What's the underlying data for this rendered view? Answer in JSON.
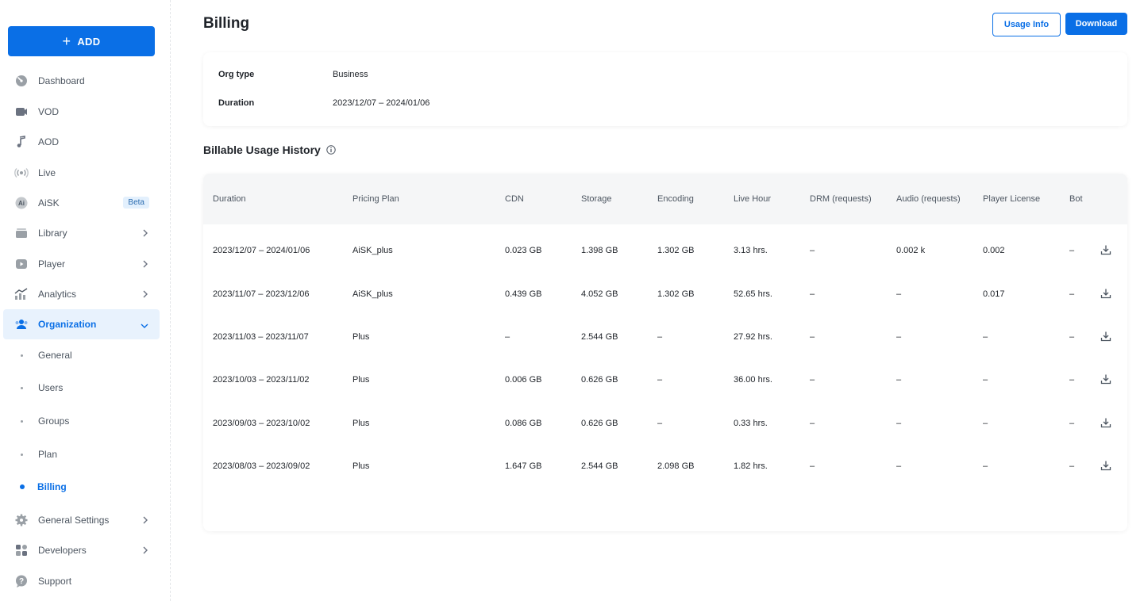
{
  "sidebar": {
    "add_label": "ADD",
    "items": [
      {
        "label": "Dashboard",
        "icon": "dashboard-icon"
      },
      {
        "label": "VOD",
        "icon": "vod-icon"
      },
      {
        "label": "AOD",
        "icon": "music-note-icon"
      },
      {
        "label": "Live",
        "icon": "live-icon"
      },
      {
        "label": "AiSK",
        "icon": "ai-icon",
        "badge": "Beta"
      },
      {
        "label": "Library",
        "icon": "library-icon"
      },
      {
        "label": "Player",
        "icon": "player-icon"
      },
      {
        "label": "Analytics",
        "icon": "analytics-icon"
      },
      {
        "label": "Organization",
        "icon": "organization-icon"
      },
      {
        "label": "General Settings",
        "icon": "gear-icon"
      },
      {
        "label": "Developers",
        "icon": "developers-icon"
      },
      {
        "label": "Support",
        "icon": "support-icon"
      }
    ],
    "sub_items": [
      "General",
      "Users",
      "Groups",
      "Plan",
      "Billing"
    ]
  },
  "header": {
    "title": "Billing",
    "usage_info_label": "Usage Info",
    "download_label": "Download"
  },
  "org_info": {
    "org_type_label": "Org type",
    "org_type_value": "Business",
    "duration_label": "Duration",
    "duration_value": "2023/12/07 – 2024/01/06"
  },
  "usage": {
    "title": "Billable Usage History",
    "columns": [
      "Duration",
      "Pricing Plan",
      "CDN",
      "Storage",
      "Encoding",
      "Live Hour",
      "DRM (requests)",
      "Audio (requests)",
      "Player License",
      "Bot"
    ],
    "rows": [
      [
        "2023/12/07 – 2024/01/06",
        "AiSK_plus",
        "0.023 GB",
        "1.398 GB",
        "1.302 GB",
        "3.13 hrs.",
        "–",
        "0.002 k",
        "0.002",
        "–"
      ],
      [
        "2023/11/07 – 2023/12/06",
        "AiSK_plus",
        "0.439 GB",
        "4.052 GB",
        "1.302 GB",
        "52.65 hrs.",
        "–",
        "–",
        "0.017",
        "–"
      ],
      [
        "2023/11/03 – 2023/11/07",
        "Plus",
        "–",
        "2.544 GB",
        "–",
        "27.92 hrs.",
        "–",
        "–",
        "–",
        "–"
      ],
      [
        "2023/10/03 – 2023/11/02",
        "Plus",
        "0.006 GB",
        "0.626 GB",
        "–",
        "36.00 hrs.",
        "–",
        "–",
        "–",
        "–"
      ],
      [
        "2023/09/03 – 2023/10/02",
        "Plus",
        "0.086 GB",
        "0.626 GB",
        "–",
        "0.33 hrs.",
        "–",
        "–",
        "–",
        "–"
      ],
      [
        "2023/08/03 – 2023/09/02",
        "Plus",
        "1.647 GB",
        "2.544 GB",
        "2.098 GB",
        "1.82 hrs.",
        "–",
        "–",
        "–",
        "–"
      ]
    ]
  },
  "colors": {
    "accent": "#0a6fe6",
    "active_bg": "#e8f2fd",
    "header_bg": "#f5f6f7"
  }
}
